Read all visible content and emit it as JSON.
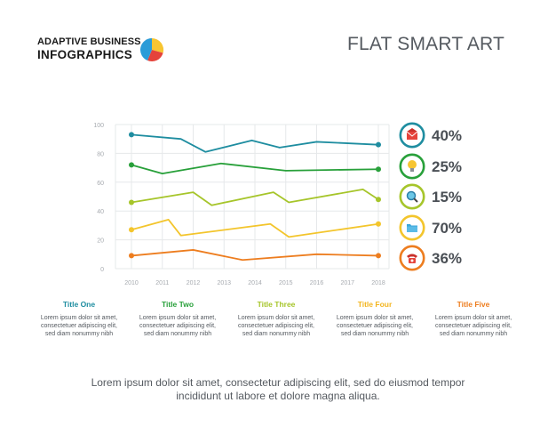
{
  "brand": {
    "line1": "ADAPTIVE BUSINESS",
    "line2": "INFOGRAPHICS",
    "logo_colors": [
      "#f7c531",
      "#e5433b",
      "#2b9cd8"
    ]
  },
  "title": "FLAT SMART ART",
  "chart_data": {
    "type": "line",
    "title": "",
    "xlabel": "",
    "ylabel": "",
    "x": [
      "2010",
      "2011",
      "2012",
      "2013",
      "2014",
      "2015",
      "2016",
      "2017",
      "2018"
    ],
    "x_numeric": [
      2010,
      2011,
      2012,
      2013,
      2014,
      2015,
      2016,
      2017,
      2018
    ],
    "xlim": [
      2010,
      2018
    ],
    "ylim": [
      0,
      100
    ],
    "yticks": [
      "0",
      "20",
      "40",
      "60",
      "80",
      "100"
    ],
    "grid": true,
    "series": [
      {
        "color": "#1e8da0",
        "points": [
          [
            2010,
            93
          ],
          [
            2011.6,
            90
          ],
          [
            2012.4,
            81
          ],
          [
            2013.9,
            89
          ],
          [
            2014.8,
            84
          ],
          [
            2016,
            88
          ],
          [
            2018,
            86
          ]
        ]
      },
      {
        "color": "#28a03a",
        "points": [
          [
            2010,
            72
          ],
          [
            2011,
            66
          ],
          [
            2012.9,
            73
          ],
          [
            2015,
            68
          ],
          [
            2018,
            69
          ]
        ]
      },
      {
        "color": "#a6c52a",
        "points": [
          [
            2010,
            46
          ],
          [
            2012,
            53
          ],
          [
            2012.6,
            44
          ],
          [
            2014.6,
            53
          ],
          [
            2015.1,
            46
          ],
          [
            2017.5,
            55
          ],
          [
            2018,
            48
          ]
        ]
      },
      {
        "color": "#f3c52c",
        "points": [
          [
            2010,
            27
          ],
          [
            2011.2,
            34
          ],
          [
            2011.6,
            23
          ],
          [
            2014.5,
            31
          ],
          [
            2015.1,
            22
          ],
          [
            2018,
            31
          ]
        ]
      },
      {
        "color": "#ed7d1f",
        "points": [
          [
            2010,
            9
          ],
          [
            2012,
            13
          ],
          [
            2013.6,
            6
          ],
          [
            2016,
            10
          ],
          [
            2018,
            9
          ]
        ]
      }
    ]
  },
  "badges": [
    {
      "icon": "envelope-icon",
      "color": "#1e8da0",
      "value": "40%"
    },
    {
      "icon": "lightbulb-icon",
      "color": "#28a03a",
      "value": "25%"
    },
    {
      "icon": "magnifier-icon",
      "color": "#a6c52a",
      "value": "15%"
    },
    {
      "icon": "folder-icon",
      "color": "#f3c52c",
      "value": "70%"
    },
    {
      "icon": "telephone-icon",
      "color": "#ed7d1f",
      "value": "36%"
    }
  ],
  "columns": [
    {
      "title": "Title One",
      "color": "#1e8da0",
      "lines": [
        "Lorem ipsum dolor sit amet,",
        "consectetuer adipiscing elit,",
        "sed diam nonummy nibh"
      ]
    },
    {
      "title": "Title Two",
      "color": "#28a03a",
      "lines": [
        "Lorem ipsum dolor sit amet,",
        "consectetuer adipiscing elit,",
        "sed diam nonummy nibh"
      ]
    },
    {
      "title": "Title Three",
      "color": "#a6c52a",
      "lines": [
        "Lorem ipsum dolor sit amet,",
        "consectetuer adipiscing elit,",
        "sed diam nonummy nibh"
      ]
    },
    {
      "title": "Title Four",
      "color": "#f3b51f",
      "lines": [
        "Lorem ipsum dolor sit amet,",
        "consectetuer adipiscing elit,",
        "sed diam nonummy nibh"
      ]
    },
    {
      "title": "Title Five",
      "color": "#ed7d1f",
      "lines": [
        "Lorem ipsum dolor sit amet,",
        "consectetuer adipiscing elit,",
        "sed diam nonummy nibh"
      ]
    }
  ],
  "footer": {
    "line1": "Lorem ipsum dolor sit amet, consectetur adipiscing elit, sed do eiusmod tempor",
    "line2": "incididunt ut labore et dolore magna aliqua."
  }
}
